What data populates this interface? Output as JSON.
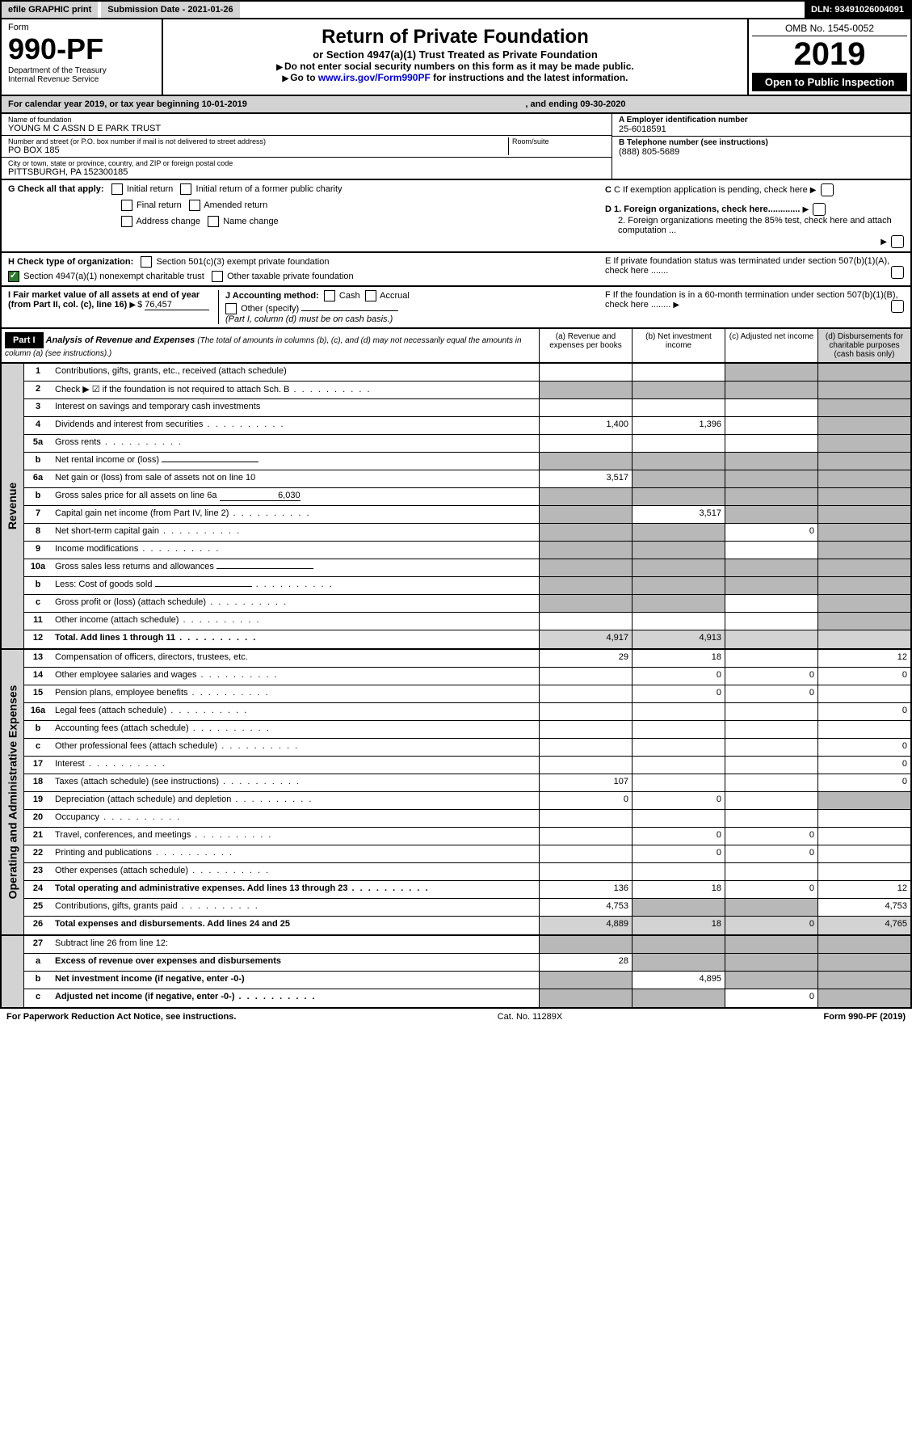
{
  "topbar": {
    "efile": "efile GRAPHIC print",
    "subdate": "Submission Date - 2021-01-26",
    "dln": "DLN: 93491026004091"
  },
  "header": {
    "form_label": "Form",
    "form_num": "990-PF",
    "dept": "Department of the Treasury\nInternal Revenue Service",
    "title": "Return of Private Foundation",
    "subtitle": "or Section 4947(a)(1) Trust Treated as Private Foundation",
    "note1": "Do not enter social security numbers on this form as it may be made public.",
    "note2_pre": "Go to ",
    "note2_link": "www.irs.gov/Form990PF",
    "note2_post": " for instructions and the latest information.",
    "omb": "OMB No. 1545-0052",
    "year": "2019",
    "open": "Open to Public Inspection"
  },
  "calbar": {
    "pre": "For calendar year 2019, or tax year beginning 10-01-2019",
    "mid": ", and ending 09-30-2020"
  },
  "info": {
    "name_label": "Name of foundation",
    "name": "YOUNG M C ASSN D E PARK TRUST",
    "addr_label": "Number and street (or P.O. box number if mail is not delivered to street address)",
    "addr": "PO BOX 185",
    "room_label": "Room/suite",
    "city_label": "City or town, state or province, country, and ZIP or foreign postal code",
    "city": "PITTSBURGH, PA  152300185",
    "ein_label": "A Employer identification number",
    "ein": "25-6018591",
    "tel_label": "B Telephone number (see instructions)",
    "tel": "(888) 805-5689",
    "c_label": "C If exemption application is pending, check here",
    "d1": "D 1. Foreign organizations, check here.............",
    "d2": "2. Foreign organizations meeting the 85% test, check here and attach computation ...",
    "e_label": "E  If private foundation status was terminated under section 507(b)(1)(A), check here .......",
    "f_label": "F  If the foundation is in a 60-month termination under section 507(b)(1)(B), check here ........"
  },
  "g": {
    "label": "G Check all that apply:",
    "opts": [
      "Initial return",
      "Initial return of a former public charity",
      "Final return",
      "Amended return",
      "Address change",
      "Name change"
    ]
  },
  "h": {
    "label": "H Check type of organization:",
    "opt1": "Section 501(c)(3) exempt private foundation",
    "opt2": "Section 4947(a)(1) nonexempt charitable trust",
    "opt3": "Other taxable private foundation"
  },
  "i": {
    "label": "I Fair market value of all assets at end of year (from Part II, col. (c), line 16)",
    "val": "76,457"
  },
  "j": {
    "label": "J Accounting method:",
    "cash": "Cash",
    "accrual": "Accrual",
    "other": "Other (specify)",
    "note": "(Part I, column (d) must be on cash basis.)"
  },
  "part1": {
    "label": "Part I",
    "title": "Analysis of Revenue and Expenses",
    "sub": "(The total of amounts in columns (b), (c), and (d) may not necessarily equal the amounts in column (a) (see instructions).)",
    "cola": "(a)   Revenue and expenses per books",
    "colb": "(b)  Net investment income",
    "colc": "(c)  Adjusted net income",
    "cold": "(d)  Disbursements for charitable purposes (cash basis only)"
  },
  "revenue_label": "Revenue",
  "expenses_label": "Operating and Administrative Expenses",
  "rows_rev": [
    {
      "n": "1",
      "d": "Contributions, gifts, grants, etc., received (attach schedule)",
      "a": "",
      "b": "",
      "c": "g",
      "dd": "g"
    },
    {
      "n": "2",
      "d": "Check ▶ ☑ if the foundation is not required to attach Sch. B",
      "a": "g",
      "b": "g",
      "c": "g",
      "dd": "g",
      "dots": true
    },
    {
      "n": "3",
      "d": "Interest on savings and temporary cash investments",
      "a": "",
      "b": "",
      "c": "",
      "dd": "g"
    },
    {
      "n": "4",
      "d": "Dividends and interest from securities",
      "a": "1,400",
      "b": "1,396",
      "c": "",
      "dd": "g",
      "dots": true
    },
    {
      "n": "5a",
      "d": "Gross rents",
      "a": "",
      "b": "",
      "c": "",
      "dd": "g",
      "dots": true
    },
    {
      "n": "b",
      "d": "Net rental income or (loss)",
      "a": "g",
      "b": "g",
      "c": "g",
      "dd": "g",
      "line": true
    },
    {
      "n": "6a",
      "d": "Net gain or (loss) from sale of assets not on line 10",
      "a": "3,517",
      "b": "g",
      "c": "g",
      "dd": "g"
    },
    {
      "n": "b",
      "d": "Gross sales price for all assets on line 6a",
      "a": "g",
      "b": "g",
      "c": "g",
      "dd": "g",
      "inline_val": "6,030"
    },
    {
      "n": "7",
      "d": "Capital gain net income (from Part IV, line 2)",
      "a": "g",
      "b": "3,517",
      "c": "g",
      "dd": "g",
      "dots": true
    },
    {
      "n": "8",
      "d": "Net short-term capital gain",
      "a": "g",
      "b": "g",
      "c": "0",
      "dd": "g",
      "dots": true
    },
    {
      "n": "9",
      "d": "Income modifications",
      "a": "g",
      "b": "g",
      "c": "",
      "dd": "g",
      "dots": true
    },
    {
      "n": "10a",
      "d": "Gross sales less returns and allowances",
      "a": "g",
      "b": "g",
      "c": "g",
      "dd": "g",
      "line": true
    },
    {
      "n": "b",
      "d": "Less: Cost of goods sold",
      "a": "g",
      "b": "g",
      "c": "g",
      "dd": "g",
      "line": true,
      "dots": true
    },
    {
      "n": "c",
      "d": "Gross profit or (loss) (attach schedule)",
      "a": "g",
      "b": "g",
      "c": "",
      "dd": "g",
      "dots": true
    },
    {
      "n": "11",
      "d": "Other income (attach schedule)",
      "a": "",
      "b": "",
      "c": "",
      "dd": "g",
      "dots": true
    },
    {
      "n": "12",
      "d": "Total. Add lines 1 through 11",
      "a": "4,917",
      "b": "4,913",
      "c": "",
      "dd": "g",
      "dots": true,
      "bold": true,
      "lg": true
    }
  ],
  "rows_exp": [
    {
      "n": "13",
      "d": "Compensation of officers, directors, trustees, etc.",
      "a": "29",
      "b": "18",
      "c": "",
      "dd": "12"
    },
    {
      "n": "14",
      "d": "Other employee salaries and wages",
      "a": "",
      "b": "0",
      "c": "0",
      "dd": "0",
      "dots": true
    },
    {
      "n": "15",
      "d": "Pension plans, employee benefits",
      "a": "",
      "b": "0",
      "c": "0",
      "dd": "",
      "dots": true
    },
    {
      "n": "16a",
      "d": "Legal fees (attach schedule)",
      "a": "",
      "b": "",
      "c": "",
      "dd": "0",
      "dots": true
    },
    {
      "n": "b",
      "d": "Accounting fees (attach schedule)",
      "a": "",
      "b": "",
      "c": "",
      "dd": "",
      "dots": true
    },
    {
      "n": "c",
      "d": "Other professional fees (attach schedule)",
      "a": "",
      "b": "",
      "c": "",
      "dd": "0",
      "dots": true
    },
    {
      "n": "17",
      "d": "Interest",
      "a": "",
      "b": "",
      "c": "",
      "dd": "0",
      "dots": true
    },
    {
      "n": "18",
      "d": "Taxes (attach schedule) (see instructions)",
      "a": "107",
      "b": "",
      "c": "",
      "dd": "0",
      "dots": true
    },
    {
      "n": "19",
      "d": "Depreciation (attach schedule) and depletion",
      "a": "0",
      "b": "0",
      "c": "",
      "dd": "g",
      "dots": true
    },
    {
      "n": "20",
      "d": "Occupancy",
      "a": "",
      "b": "",
      "c": "",
      "dd": "",
      "dots": true
    },
    {
      "n": "21",
      "d": "Travel, conferences, and meetings",
      "a": "",
      "b": "0",
      "c": "0",
      "dd": "",
      "dots": true
    },
    {
      "n": "22",
      "d": "Printing and publications",
      "a": "",
      "b": "0",
      "c": "0",
      "dd": "",
      "dots": true
    },
    {
      "n": "23",
      "d": "Other expenses (attach schedule)",
      "a": "",
      "b": "",
      "c": "",
      "dd": "",
      "dots": true
    },
    {
      "n": "24",
      "d": "Total operating and administrative expenses. Add lines 13 through 23",
      "a": "136",
      "b": "18",
      "c": "0",
      "dd": "12",
      "dots": true,
      "bold": true
    },
    {
      "n": "25",
      "d": "Contributions, gifts, grants paid",
      "a": "4,753",
      "b": "g",
      "c": "g",
      "dd": "4,753",
      "dots": true
    },
    {
      "n": "26",
      "d": "Total expenses and disbursements. Add lines 24 and 25",
      "a": "4,889",
      "b": "18",
      "c": "0",
      "dd": "4,765",
      "bold": true,
      "lg": true
    }
  ],
  "rows_bot": [
    {
      "n": "27",
      "d": "Subtract line 26 from line 12:",
      "a": "g",
      "b": "g",
      "c": "g",
      "dd": "g"
    },
    {
      "n": "a",
      "d": "Excess of revenue over expenses and disbursements",
      "a": "28",
      "b": "g",
      "c": "g",
      "dd": "g",
      "bold": true
    },
    {
      "n": "b",
      "d": "Net investment income (if negative, enter -0-)",
      "a": "g",
      "b": "4,895",
      "c": "g",
      "dd": "g",
      "bold": true
    },
    {
      "n": "c",
      "d": "Adjusted net income (if negative, enter -0-)",
      "a": "g",
      "b": "g",
      "c": "0",
      "dd": "g",
      "bold": true,
      "dots": true
    }
  ],
  "footer": {
    "left": "For Paperwork Reduction Act Notice, see instructions.",
    "mid": "Cat. No. 11289X",
    "right": "Form 990-PF (2019)"
  }
}
